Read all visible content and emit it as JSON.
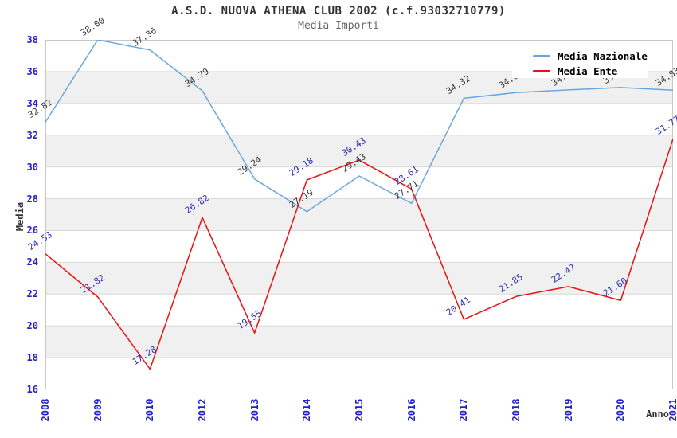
{
  "header": {
    "title": "A.S.D. NUOVA ATHENA CLUB 2002 (c.f.93032710779)",
    "subtitle": "Media Importi"
  },
  "chart_data": {
    "type": "line",
    "title": "A.S.D. NUOVA ATHENA CLUB 2002 (c.f.93032710779)",
    "subtitle": "Media Importi",
    "xlabel": "Anno",
    "ylabel": "Media",
    "categories": [
      "2008",
      "2009",
      "2010",
      "2012",
      "2013",
      "2014",
      "2015",
      "2016",
      "2017",
      "2018",
      "2019",
      "2020",
      "2021"
    ],
    "series": [
      {
        "name": "Media Nazionale",
        "color": "#6ba6e0",
        "label_color": "#3a3a3a",
        "values": [
          32.82,
          38.0,
          37.36,
          34.79,
          29.24,
          27.19,
          29.43,
          27.71,
          34.32,
          34.68,
          34.85,
          35.0,
          34.83
        ],
        "hidden_label_indexes": [
          10,
          11
        ]
      },
      {
        "name": "Media Ente",
        "color": "#e81212",
        "label_color": "#2d2db8",
        "values": [
          24.53,
          21.82,
          17.28,
          26.82,
          19.55,
          29.18,
          30.43,
          28.61,
          20.41,
          21.85,
          22.47,
          21.6,
          31.77
        ],
        "hidden_label_indexes": []
      }
    ],
    "ylim": [
      16,
      38
    ],
    "ytick_step": 2,
    "yticks": [
      "38",
      "36",
      "34",
      "32",
      "30",
      "28",
      "26",
      "24",
      "22",
      "20",
      "18",
      "16"
    ],
    "grid": "horizontal gridlines with alternating light-gray band shading every 2 units",
    "legend_position": "top-right inside plot",
    "colors": {
      "tick_label": "#2222cc",
      "band_gray": "#f0f0f0",
      "gridline": "#d9d9d9",
      "plot_border": "#c9c9c9",
      "title_text": "#333333",
      "subtitle_text": "#666666"
    }
  }
}
